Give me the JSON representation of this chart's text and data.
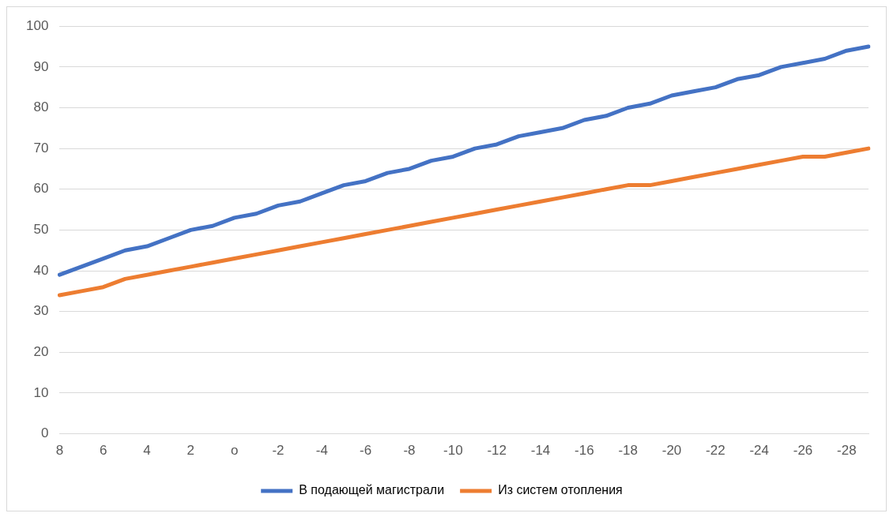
{
  "chart_data": {
    "type": "line",
    "categories": [
      "8",
      null,
      "6",
      null,
      "4",
      null,
      "2",
      null,
      "o",
      null,
      "-2",
      null,
      "-4",
      null,
      "-6",
      null,
      "-8",
      null,
      "-10",
      null,
      "-12",
      null,
      "-14",
      null,
      "-16",
      null,
      "-18",
      null,
      "-20",
      null,
      "-22",
      null,
      "-24",
      null,
      "-26",
      null,
      "-28",
      null
    ],
    "series": [
      {
        "name": "В подающей магистрали",
        "color": "#4472c4",
        "values": [
          39,
          41,
          43,
          45,
          46,
          48,
          50,
          51,
          53,
          54,
          56,
          57,
          59,
          61,
          62,
          64,
          65,
          67,
          68,
          70,
          71,
          73,
          74,
          75,
          77,
          78,
          80,
          81,
          83,
          84,
          85,
          87,
          88,
          90,
          91,
          92,
          94,
          95
        ]
      },
      {
        "name": "Из систем отопления",
        "color": "#ed7d31",
        "values": [
          34,
          35,
          36,
          38,
          39,
          40,
          41,
          42,
          43,
          44,
          45,
          46,
          47,
          48,
          49,
          50,
          51,
          52,
          53,
          54,
          55,
          56,
          57,
          58,
          59,
          60,
          61,
          61,
          62,
          63,
          64,
          65,
          66,
          67,
          68,
          68,
          69,
          70
        ]
      }
    ],
    "ylim": [
      0,
      100
    ],
    "yticks": [
      0,
      10,
      20,
      30,
      40,
      50,
      60,
      70,
      80,
      90,
      100
    ],
    "grid": "y",
    "legend": "bottom",
    "marker": "none",
    "line_style": "solid"
  }
}
